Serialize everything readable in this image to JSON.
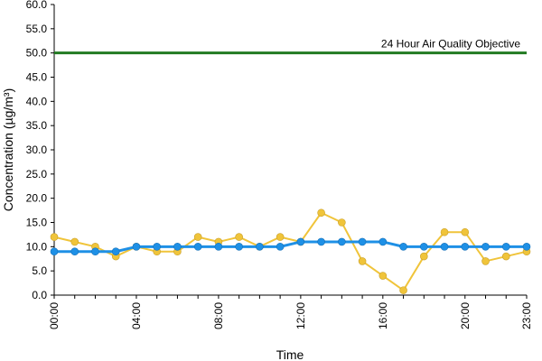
{
  "chart_data": {
    "type": "line",
    "title": "",
    "xlabel": "Time",
    "ylabel": "Concentration (µg/m³)",
    "ylim": [
      0,
      60
    ],
    "yticks": [
      "0.0",
      "5.0",
      "10.0",
      "15.0",
      "20.0",
      "25.0",
      "30.0",
      "35.0",
      "40.0",
      "45.0",
      "50.0",
      "55.0",
      "60.0"
    ],
    "x": [
      "00:00",
      "01:00",
      "02:00",
      "03:00",
      "04:00",
      "05:00",
      "06:00",
      "07:00",
      "08:00",
      "09:00",
      "10:00",
      "11:00",
      "12:00",
      "13:00",
      "14:00",
      "15:00",
      "16:00",
      "17:00",
      "18:00",
      "19:00",
      "20:00",
      "21:00",
      "22:00",
      "23:00"
    ],
    "xtick_labels": [
      "00:00",
      "04:00",
      "08:00",
      "12:00",
      "16:00",
      "20:00",
      "23:00"
    ],
    "grid": false,
    "series": [
      {
        "name": "",
        "color": "#f0c43a",
        "values": [
          12,
          11,
          10,
          8,
          10,
          9,
          9,
          12,
          11,
          12,
          10,
          12,
          11,
          17,
          15,
          7,
          4,
          1,
          8,
          13,
          13,
          7,
          8,
          9
        ]
      },
      {
        "name": "",
        "color": "#1e90e6",
        "values": [
          9,
          9,
          9,
          9,
          10,
          10,
          10,
          10,
          10,
          10,
          10,
          10,
          11,
          11,
          11,
          11,
          11,
          10,
          10,
          10,
          10,
          10,
          10,
          10
        ]
      }
    ],
    "reference_line": {
      "label": "24 Hour Air Quality Objective",
      "value": 50,
      "color": "#217a21"
    }
  }
}
